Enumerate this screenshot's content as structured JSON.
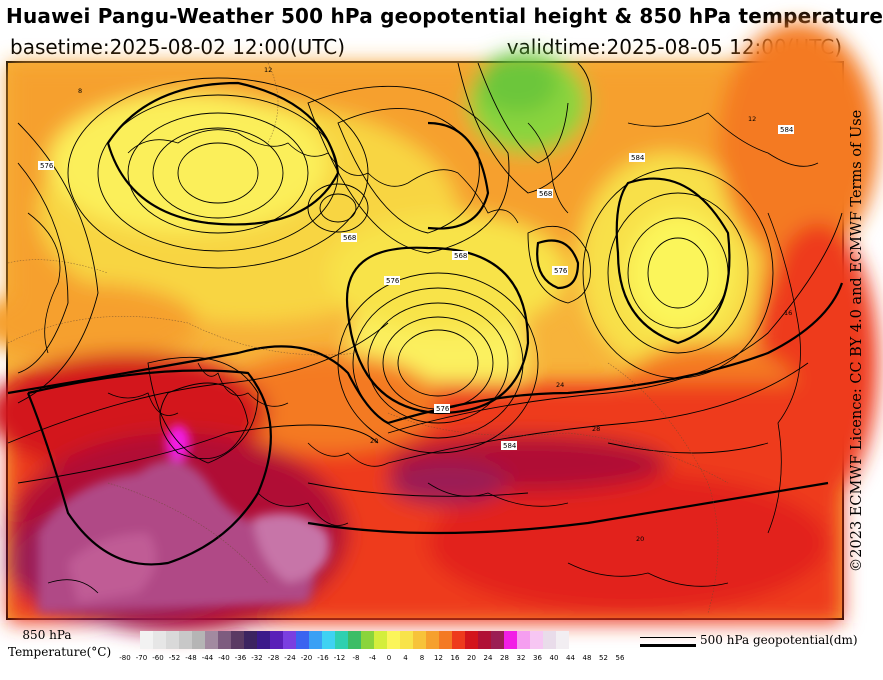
{
  "header": {
    "title": "Huawei Pangu-Weather 500 hPa geopotential height & 850 hPa temperature",
    "basetime": "basetime:2025-08-02 12:00(UTC)",
    "validtime": "validtime:2025-08-05 12:00(UTC)"
  },
  "licence": "©2023 ECMWF Licence: CC BY 4.0 and ECMWF Terms of Use",
  "map": {
    "contour_labels": [
      "568",
      "568",
      "576",
      "576",
      "584",
      "568",
      "576",
      "584",
      "584",
      "576"
    ],
    "temp_labels": [
      "24",
      "28",
      "12",
      "16",
      "20",
      "8",
      "12",
      "20"
    ]
  },
  "colorbar": {
    "label_line1": "850 hPa",
    "label_line2": "Temperature(°C)",
    "ticks": [
      "-80",
      "-70",
      "-60",
      "-52",
      "-48",
      "-44",
      "-40",
      "-36",
      "-32",
      "-28",
      "-24",
      "-20",
      "-16",
      "-12",
      "-8",
      "-4",
      "0",
      "4",
      "8",
      "12",
      "16",
      "20",
      "24",
      "28",
      "32",
      "36",
      "40",
      "44",
      "48",
      "52",
      "56"
    ],
    "colors": [
      "#f2f2f2",
      "#e6e6e6",
      "#d9d9d9",
      "#c8c8c8",
      "#b5b5b5",
      "#a28aa0",
      "#7d5c7f",
      "#5a3a63",
      "#3c2460",
      "#3b1a8a",
      "#5a1fb8",
      "#7a3fe0",
      "#3b64f0",
      "#3aa0f5",
      "#3fd2f2",
      "#2fd0b0",
      "#3cbd66",
      "#8ad43c",
      "#d4ee3c",
      "#fbf55a",
      "#f8e34a",
      "#f7c33a",
      "#f6a02e",
      "#f47a24",
      "#ee3a1c",
      "#d3141c",
      "#b01035",
      "#9b1e54",
      "#f21ee6",
      "#f59ef0",
      "#f7c6f3",
      "#e9dcea",
      "#f2eef2"
    ],
    "legend_text": "500 hPa geopotential(dm)"
  }
}
